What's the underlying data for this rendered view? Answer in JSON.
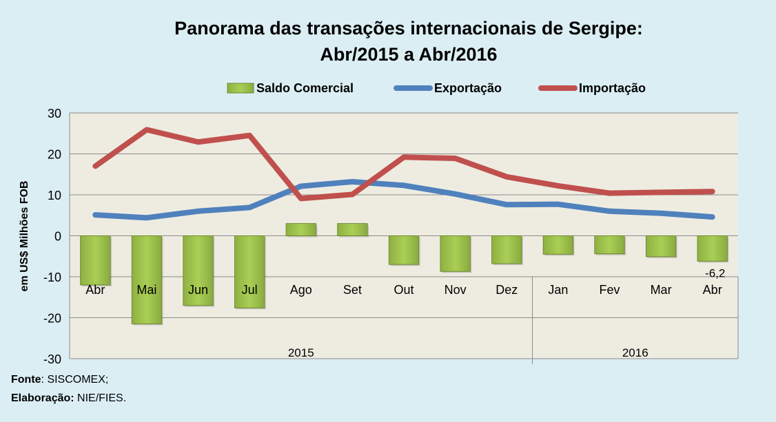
{
  "chart_data": {
    "type": "bar+line",
    "title_line1": "Panorama das transações internacionais de Sergipe:",
    "title_line2": "Abr/2015 a Abr/2016",
    "ylabel": "em US$ Milhões FOB",
    "ylim": [
      -30,
      30
    ],
    "yticks": [
      30,
      20,
      10,
      0,
      -10,
      -20,
      -30
    ],
    "grid": true,
    "legend_position": "top",
    "categories": [
      "Abr",
      "Mai",
      "Jun",
      "Jul",
      "Ago",
      "Set",
      "Out",
      "Nov",
      "Dez",
      "Jan",
      "Fev",
      "Mar",
      "Abr"
    ],
    "year_groups": [
      {
        "label": "2015",
        "count": 9
      },
      {
        "label": "2016",
        "count": 4
      }
    ],
    "series": [
      {
        "name": "Saldo Comercial",
        "type": "bar",
        "color": "#9bbb59",
        "values": [
          -12.0,
          -21.5,
          -17.0,
          -17.6,
          3.0,
          3.0,
          -7.0,
          -8.7,
          -6.8,
          -4.5,
          -4.4,
          -5.1,
          -6.2
        ]
      },
      {
        "name": "Exportação",
        "type": "line",
        "color": "#4f81bd",
        "values": [
          5.1,
          4.4,
          6.0,
          6.9,
          12.1,
          13.2,
          12.3,
          10.2,
          7.6,
          7.7,
          6.0,
          5.5,
          4.6
        ]
      },
      {
        "name": "Importação",
        "type": "line",
        "color": "#c0504d",
        "values": [
          17.0,
          25.9,
          22.9,
          24.5,
          9.1,
          10.1,
          19.2,
          18.9,
          14.4,
          12.2,
          10.4,
          10.6,
          10.8
        ]
      }
    ],
    "data_labels": [
      {
        "series": "Saldo Comercial",
        "index": 12,
        "text": "-6,2"
      }
    ]
  },
  "footer": {
    "source_label": "Fonte",
    "source_value": ": SISCOMEX;",
    "elab_label": "Elaboração:",
    "elab_value": " NIE/FIES."
  }
}
